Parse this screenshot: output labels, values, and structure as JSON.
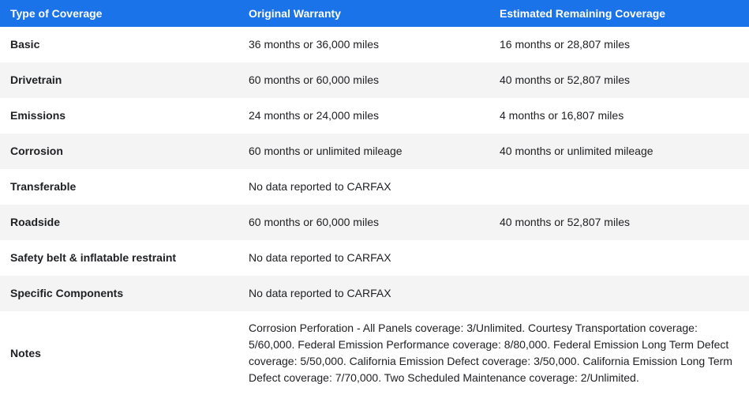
{
  "table": {
    "headers": [
      "Type of Coverage",
      "Original Warranty",
      "Estimated Remaining Coverage"
    ],
    "header_bg": "#1a73e8",
    "rows": [
      {
        "type": "Basic",
        "original": "36 months or 36,000 miles",
        "remaining": "16 months or 28,807 miles"
      },
      {
        "type": "Drivetrain",
        "original": "60 months or 60,000 miles",
        "remaining": "40 months or 52,807 miles"
      },
      {
        "type": "Emissions",
        "original": "24 months or 24,000 miles",
        "remaining": "4 months or 16,807 miles"
      },
      {
        "type": "Corrosion",
        "original": "60 months or unlimited mileage",
        "remaining": "40 months or unlimited mileage"
      },
      {
        "type": "Transferable",
        "original": "No data reported to CARFAX",
        "remaining": ""
      },
      {
        "type": "Roadside",
        "original": "60 months or 60,000 miles",
        "remaining": "40 months or 52,807 miles"
      },
      {
        "type": "Safety belt & inflatable restraint",
        "original": "No data reported to CARFAX",
        "remaining": ""
      },
      {
        "type": "Specific Components",
        "original": "No data reported to CARFAX",
        "remaining": ""
      }
    ],
    "notes": {
      "label": "Notes",
      "text": "Corrosion Perforation - All Panels coverage: 3/Unlimited. Courtesy Transportation coverage: 5/60,000. Federal Emission Performance coverage: 8/80,000. Federal Emission Long Term Defect coverage: 5/50,000. California Emission Defect coverage: 3/50,000. California Emission Long Term Defect coverage: 7/70,000. Two Scheduled Maintenance coverage: 2/Unlimited."
    }
  }
}
